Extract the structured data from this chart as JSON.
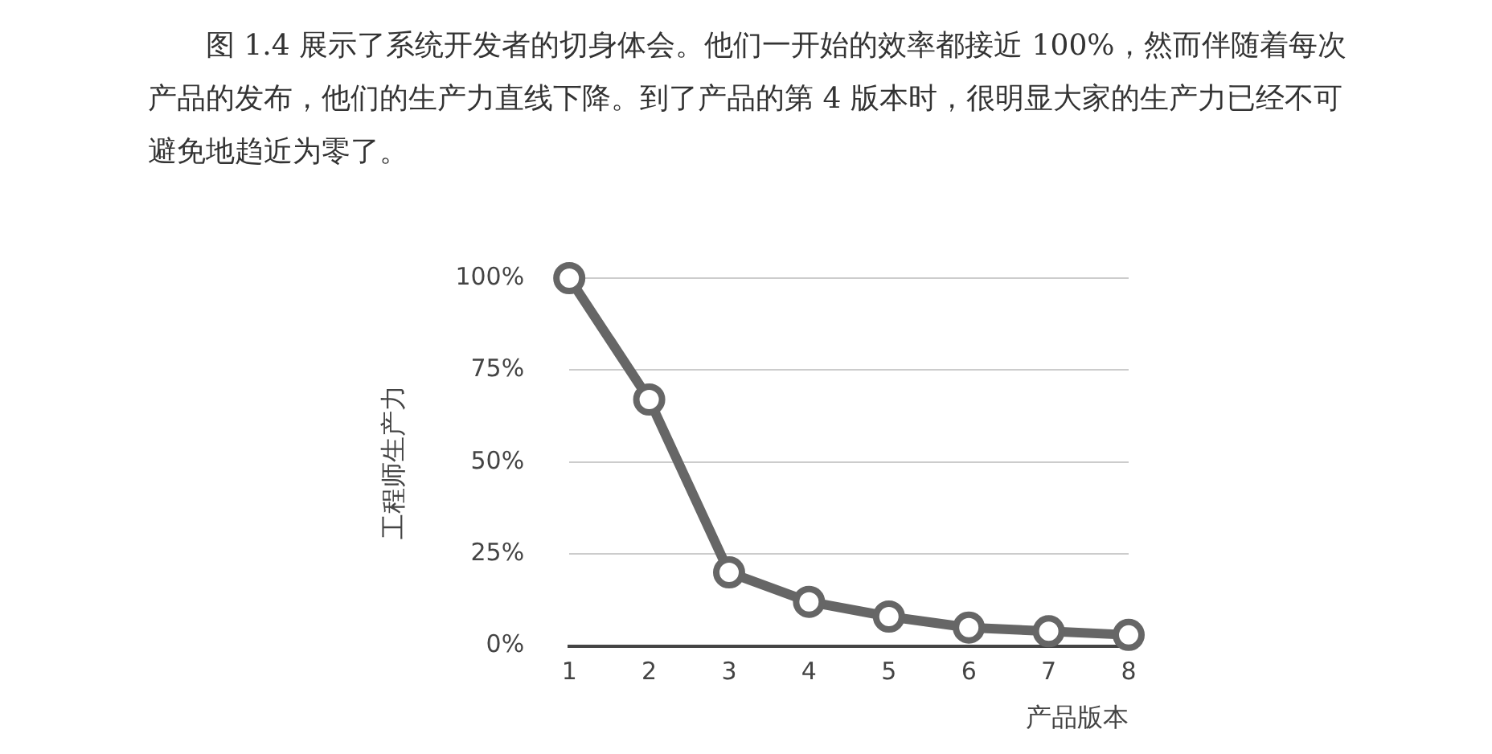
{
  "chart_data": {
    "type": "line",
    "annotations": [
      "图 1.4 展示了系统开发者的切身体会。他们一开始的效率都接近 100%，然而伴随着每次产品的发布，他们的生产力直线下降。到了产品的第 4 版本时，很明显大家的生产力已经不可避免地趋近为零了。"
    ],
    "xlabel": "产品版本",
    "ylabel": "工程师生产力",
    "categories": [
      "1",
      "2",
      "3",
      "4",
      "5",
      "6",
      "7",
      "8"
    ],
    "series": [
      {
        "color": "#666666",
        "values": [
          100,
          67,
          20,
          12,
          8,
          5,
          4,
          3
        ]
      }
    ],
    "ylim": [
      0,
      100
    ],
    "yticks": [
      {
        "value": 0,
        "label": "0%"
      },
      {
        "value": 25,
        "label": "25%"
      },
      {
        "value": 50,
        "label": "50%"
      },
      {
        "value": 75,
        "label": "75%"
      },
      {
        "value": 100,
        "label": "100%"
      }
    ],
    "grid": "y",
    "legend": false,
    "marker": "circle",
    "line_style": "solid"
  }
}
